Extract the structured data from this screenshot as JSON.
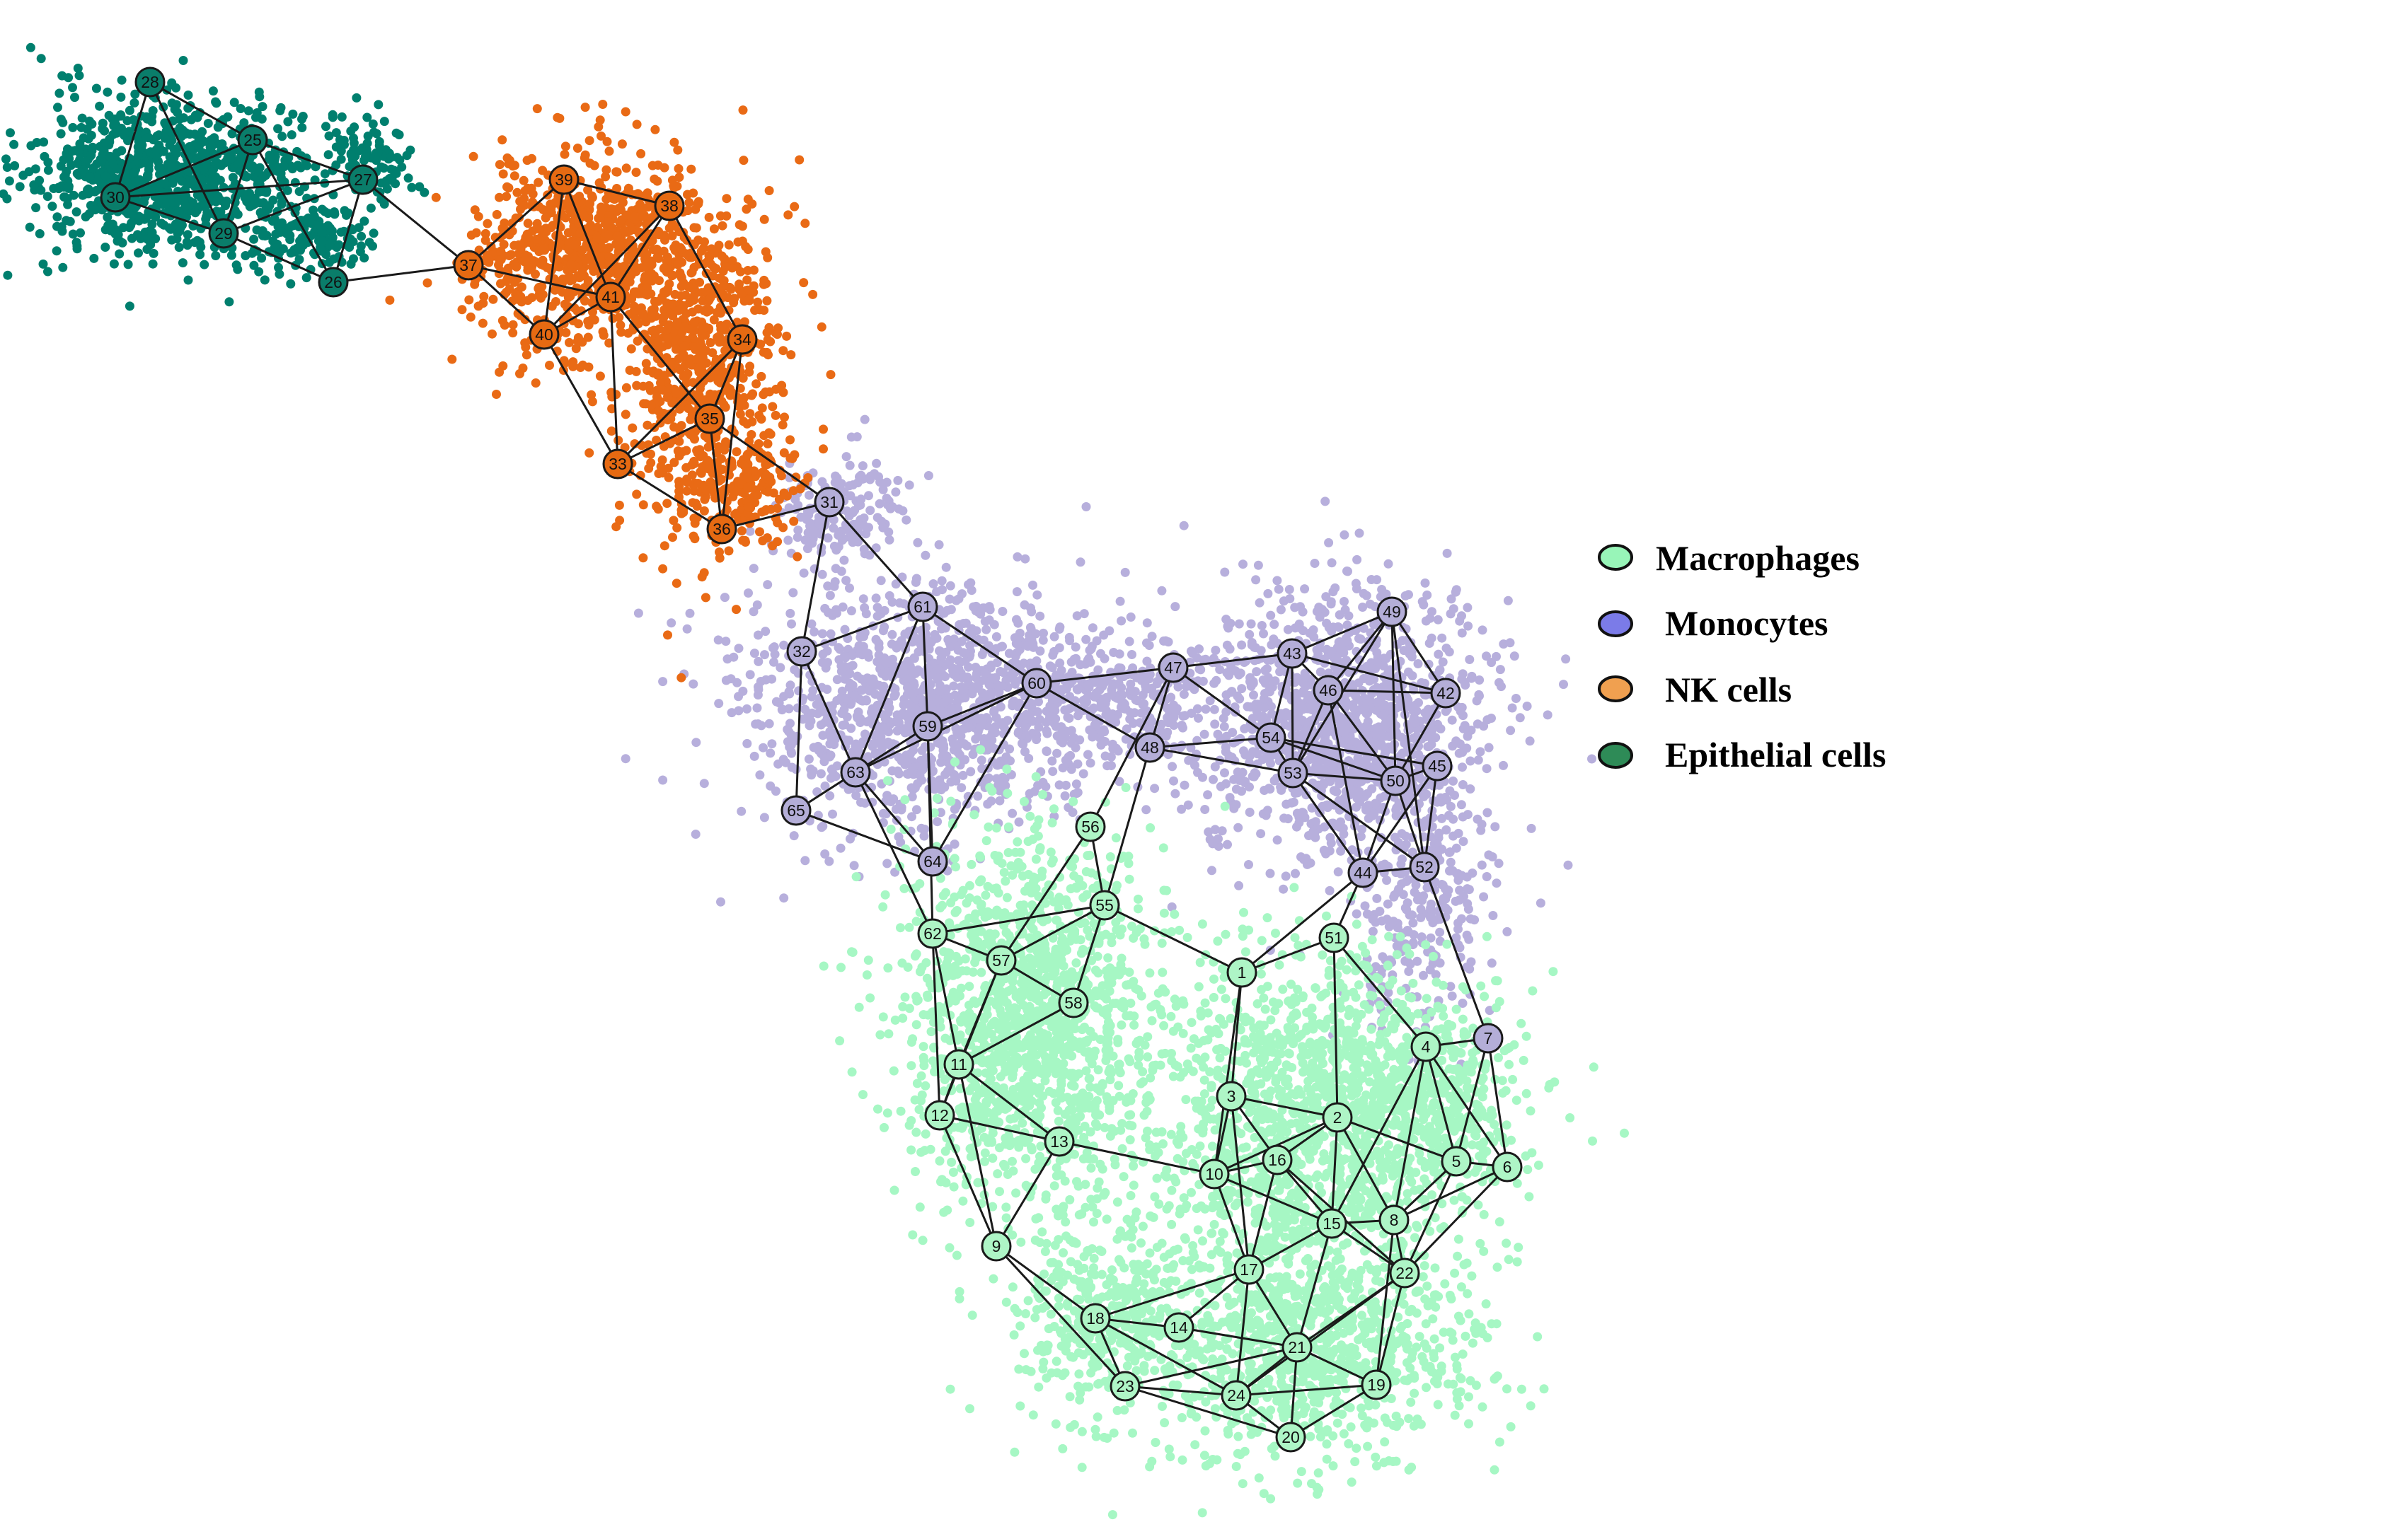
{
  "legend": [
    {
      "label": "Macrophages",
      "color": "#98f5b8",
      "key": "mac"
    },
    {
      "label": "Monocytes",
      "color": "#7b7be8",
      "key": "mono"
    },
    {
      "label": "NK cells",
      "color": "#f0a050",
      "key": "nk"
    },
    {
      "label": "Epithelial cells",
      "color": "#2e8b57",
      "key": "epi"
    }
  ],
  "cluster_colors": {
    "mac": {
      "point": "#a6f7c4",
      "node": "#aef5c6"
    },
    "mono": {
      "point": "#b7afdc",
      "node": "#b4aed8"
    },
    "nk": {
      "point": "#e96a15",
      "node": "#e66a12"
    },
    "epi": {
      "point": "#007f6e",
      "node": "#0a7d6a"
    }
  },
  "nodes": [
    {
      "id": "1",
      "cluster": "mac"
    },
    {
      "id": "2",
      "cluster": "mac"
    },
    {
      "id": "3",
      "cluster": "mac"
    },
    {
      "id": "4",
      "cluster": "mac"
    },
    {
      "id": "5",
      "cluster": "mac"
    },
    {
      "id": "6",
      "cluster": "mac"
    },
    {
      "id": "7",
      "cluster": "mono"
    },
    {
      "id": "8",
      "cluster": "mac"
    },
    {
      "id": "9",
      "cluster": "mac"
    },
    {
      "id": "10",
      "cluster": "mac"
    },
    {
      "id": "11",
      "cluster": "mac"
    },
    {
      "id": "12",
      "cluster": "mac"
    },
    {
      "id": "13",
      "cluster": "mac"
    },
    {
      "id": "14",
      "cluster": "mac"
    },
    {
      "id": "15",
      "cluster": "mac"
    },
    {
      "id": "16",
      "cluster": "mac"
    },
    {
      "id": "17",
      "cluster": "mac"
    },
    {
      "id": "18",
      "cluster": "mac"
    },
    {
      "id": "19",
      "cluster": "mac"
    },
    {
      "id": "20",
      "cluster": "mac"
    },
    {
      "id": "21",
      "cluster": "mac"
    },
    {
      "id": "22",
      "cluster": "mac"
    },
    {
      "id": "23",
      "cluster": "mac"
    },
    {
      "id": "24",
      "cluster": "mac"
    },
    {
      "id": "25",
      "cluster": "epi"
    },
    {
      "id": "26",
      "cluster": "epi"
    },
    {
      "id": "27",
      "cluster": "epi"
    },
    {
      "id": "28",
      "cluster": "epi"
    },
    {
      "id": "29",
      "cluster": "epi"
    },
    {
      "id": "30",
      "cluster": "epi"
    },
    {
      "id": "31",
      "cluster": "mono"
    },
    {
      "id": "32",
      "cluster": "mono"
    },
    {
      "id": "33",
      "cluster": "nk"
    },
    {
      "id": "34",
      "cluster": "nk"
    },
    {
      "id": "35",
      "cluster": "nk"
    },
    {
      "id": "36",
      "cluster": "nk"
    },
    {
      "id": "37",
      "cluster": "nk"
    },
    {
      "id": "38",
      "cluster": "nk"
    },
    {
      "id": "39",
      "cluster": "nk"
    },
    {
      "id": "40",
      "cluster": "nk"
    },
    {
      "id": "41",
      "cluster": "nk"
    },
    {
      "id": "42",
      "cluster": "mono"
    },
    {
      "id": "43",
      "cluster": "mono"
    },
    {
      "id": "44",
      "cluster": "mono"
    },
    {
      "id": "45",
      "cluster": "mono"
    },
    {
      "id": "46",
      "cluster": "mono"
    },
    {
      "id": "47",
      "cluster": "mono"
    },
    {
      "id": "48",
      "cluster": "mono"
    },
    {
      "id": "49",
      "cluster": "mono"
    },
    {
      "id": "50",
      "cluster": "mono"
    },
    {
      "id": "51",
      "cluster": "mac"
    },
    {
      "id": "52",
      "cluster": "mono"
    },
    {
      "id": "53",
      "cluster": "mono"
    },
    {
      "id": "54",
      "cluster": "mono"
    },
    {
      "id": "55",
      "cluster": "mac"
    },
    {
      "id": "56",
      "cluster": "mac"
    },
    {
      "id": "57",
      "cluster": "mac"
    },
    {
      "id": "58",
      "cluster": "mac"
    },
    {
      "id": "59",
      "cluster": "mono"
    },
    {
      "id": "60",
      "cluster": "mono"
    },
    {
      "id": "61",
      "cluster": "mono"
    },
    {
      "id": "62",
      "cluster": "mac"
    },
    {
      "id": "63",
      "cluster": "mono"
    },
    {
      "id": "64",
      "cluster": "mono"
    },
    {
      "id": "65",
      "cluster": "mono"
    },
    {
      "id": "54b",
      "label": "54",
      "cluster": "mono"
    }
  ],
  "edges": [
    [
      "28",
      "30"
    ],
    [
      "28",
      "25"
    ],
    [
      "28",
      "29"
    ],
    [
      "25",
      "30"
    ],
    [
      "25",
      "29"
    ],
    [
      "25",
      "27"
    ],
    [
      "25",
      "26"
    ],
    [
      "30",
      "29"
    ],
    [
      "30",
      "27"
    ],
    [
      "29",
      "26"
    ],
    [
      "27",
      "26"
    ],
    [
      "29",
      "27"
    ],
    [
      "26",
      "37"
    ],
    [
      "27",
      "37"
    ],
    [
      "37",
      "39"
    ],
    [
      "37",
      "40"
    ],
    [
      "37",
      "41"
    ],
    [
      "39",
      "38"
    ],
    [
      "39",
      "41"
    ],
    [
      "39",
      "40"
    ],
    [
      "38",
      "41"
    ],
    [
      "38",
      "40"
    ],
    [
      "40",
      "41"
    ],
    [
      "41",
      "33"
    ],
    [
      "40",
      "33"
    ],
    [
      "38",
      "34"
    ],
    [
      "41",
      "35"
    ],
    [
      "34",
      "35"
    ],
    [
      "35",
      "33"
    ],
    [
      "35",
      "36"
    ],
    [
      "33",
      "36"
    ],
    [
      "34",
      "36"
    ],
    [
      "33",
      "34"
    ],
    [
      "36",
      "31"
    ],
    [
      "35",
      "31"
    ],
    [
      "31",
      "32"
    ],
    [
      "31",
      "61"
    ],
    [
      "32",
      "61"
    ],
    [
      "32",
      "63"
    ],
    [
      "32",
      "65"
    ],
    [
      "61",
      "60"
    ],
    [
      "61",
      "59"
    ],
    [
      "61",
      "63"
    ],
    [
      "60",
      "59"
    ],
    [
      "60",
      "63"
    ],
    [
      "60",
      "47"
    ],
    [
      "60",
      "48"
    ],
    [
      "60",
      "64"
    ],
    [
      "59",
      "63"
    ],
    [
      "59",
      "64"
    ],
    [
      "59",
      "62"
    ],
    [
      "63",
      "65"
    ],
    [
      "63",
      "64"
    ],
    [
      "63",
      "62"
    ],
    [
      "65",
      "64"
    ],
    [
      "47",
      "43"
    ],
    [
      "47",
      "54b"
    ],
    [
      "47",
      "48"
    ],
    [
      "47",
      "56"
    ],
    [
      "48",
      "54b"
    ],
    [
      "48",
      "53"
    ],
    [
      "48",
      "55"
    ],
    [
      "43",
      "46"
    ],
    [
      "43",
      "49"
    ],
    [
      "43",
      "42"
    ],
    [
      "43",
      "53"
    ],
    [
      "43",
      "54b"
    ],
    [
      "46",
      "49"
    ],
    [
      "46",
      "42"
    ],
    [
      "46",
      "50"
    ],
    [
      "46",
      "53"
    ],
    [
      "46",
      "44"
    ],
    [
      "49",
      "42"
    ],
    [
      "49",
      "50"
    ],
    [
      "49",
      "53"
    ],
    [
      "54b",
      "53"
    ],
    [
      "54b",
      "45"
    ],
    [
      "54b",
      "50"
    ],
    [
      "53",
      "50"
    ],
    [
      "53",
      "44"
    ],
    [
      "53",
      "52"
    ],
    [
      "50",
      "45"
    ],
    [
      "50",
      "44"
    ],
    [
      "50",
      "52"
    ],
    [
      "45",
      "52"
    ],
    [
      "45",
      "44"
    ],
    [
      "44",
      "52"
    ],
    [
      "44",
      "51"
    ],
    [
      "52",
      "7"
    ],
    [
      "42",
      "50"
    ],
    [
      "49",
      "52"
    ],
    [
      "56",
      "55"
    ],
    [
      "56",
      "57"
    ],
    [
      "55",
      "62"
    ],
    [
      "55",
      "57"
    ],
    [
      "55",
      "58"
    ],
    [
      "55",
      "1"
    ],
    [
      "62",
      "57"
    ],
    [
      "62",
      "11"
    ],
    [
      "62",
      "12"
    ],
    [
      "57",
      "58"
    ],
    [
      "57",
      "11"
    ],
    [
      "57",
      "12"
    ],
    [
      "58",
      "11"
    ],
    [
      "11",
      "12"
    ],
    [
      "11",
      "13"
    ],
    [
      "11",
      "9"
    ],
    [
      "12",
      "13"
    ],
    [
      "12",
      "9"
    ],
    [
      "13",
      "9"
    ],
    [
      "13",
      "10"
    ],
    [
      "9",
      "18"
    ],
    [
      "9",
      "23"
    ],
    [
      "51",
      "1"
    ],
    [
      "51",
      "2"
    ],
    [
      "44",
      "1"
    ],
    [
      "1",
      "3"
    ],
    [
      "1",
      "10"
    ],
    [
      "3",
      "2"
    ],
    [
      "3",
      "16"
    ],
    [
      "3",
      "17"
    ],
    [
      "3",
      "10"
    ],
    [
      "2",
      "10"
    ],
    [
      "2",
      "16"
    ],
    [
      "2",
      "15"
    ],
    [
      "2",
      "8"
    ],
    [
      "2",
      "5"
    ],
    [
      "10",
      "16"
    ],
    [
      "10",
      "15"
    ],
    [
      "10",
      "17"
    ],
    [
      "16",
      "15"
    ],
    [
      "16",
      "22"
    ],
    [
      "16",
      "17"
    ],
    [
      "15",
      "8"
    ],
    [
      "15",
      "22"
    ],
    [
      "15",
      "21"
    ],
    [
      "15",
      "17"
    ],
    [
      "8",
      "22"
    ],
    [
      "8",
      "5"
    ],
    [
      "8",
      "19"
    ],
    [
      "8",
      "4"
    ],
    [
      "5",
      "4"
    ],
    [
      "5",
      "7"
    ],
    [
      "5",
      "6"
    ],
    [
      "5",
      "22"
    ],
    [
      "4",
      "7"
    ],
    [
      "4",
      "6"
    ],
    [
      "4",
      "51"
    ],
    [
      "7",
      "6"
    ],
    [
      "6",
      "22"
    ],
    [
      "6",
      "8"
    ],
    [
      "4",
      "15"
    ],
    [
      "22",
      "19"
    ],
    [
      "22",
      "24"
    ],
    [
      "22",
      "21"
    ],
    [
      "17",
      "14"
    ],
    [
      "17",
      "18"
    ],
    [
      "17",
      "21"
    ],
    [
      "17",
      "24"
    ],
    [
      "18",
      "14"
    ],
    [
      "18",
      "23"
    ],
    [
      "18",
      "24"
    ],
    [
      "14",
      "21"
    ],
    [
      "23",
      "24"
    ],
    [
      "23",
      "20"
    ],
    [
      "23",
      "21"
    ],
    [
      "24",
      "20"
    ],
    [
      "24",
      "21"
    ],
    [
      "21",
      "20"
    ],
    [
      "21",
      "19"
    ],
    [
      "19",
      "20"
    ],
    [
      "19",
      "24"
    ]
  ]
}
